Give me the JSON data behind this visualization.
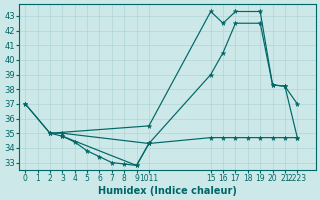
{
  "xlabel": "Humidex (Indice chaleur)",
  "bg_color": "#cce8e8",
  "line_color": "#006666",
  "grid_color": "#b0d4d4",
  "xlim": [
    -0.5,
    23.5
  ],
  "ylim": [
    32.5,
    43.8
  ],
  "yticks": [
    33,
    34,
    35,
    36,
    37,
    38,
    39,
    40,
    41,
    42,
    43
  ],
  "xtick_positions": [
    0,
    1,
    2,
    3,
    4,
    5,
    6,
    7,
    8,
    9,
    10,
    15,
    16,
    17,
    18,
    19,
    20,
    21,
    22
  ],
  "xtick_labels": [
    "0",
    "1",
    "2",
    "3",
    "4",
    "5",
    "6",
    "7",
    "8",
    "9",
    "1011",
    "15",
    "16",
    "17",
    "18",
    "19",
    "20",
    "21",
    "2223"
  ],
  "lines": [
    {
      "x": [
        0,
        2,
        10,
        15,
        16,
        17,
        19,
        20,
        21,
        22
      ],
      "y": [
        37.0,
        35.0,
        35.5,
        43.3,
        42.5,
        43.3,
        43.3,
        38.3,
        38.2,
        37.0
      ]
    },
    {
      "x": [
        0,
        2,
        3,
        4,
        5,
        6,
        7,
        8,
        9,
        10,
        15,
        16,
        17,
        18,
        19,
        20,
        21,
        22
      ],
      "y": [
        37.0,
        35.0,
        34.8,
        34.4,
        33.8,
        33.4,
        33.0,
        32.9,
        32.8,
        34.3,
        34.7,
        34.7,
        34.7,
        34.7,
        34.7,
        34.7,
        34.7,
        34.7
      ]
    },
    {
      "x": [
        2,
        3,
        10,
        15,
        16,
        17,
        19,
        20,
        21,
        22
      ],
      "y": [
        35.0,
        35.0,
        34.3,
        39.0,
        40.5,
        42.5,
        42.5,
        38.3,
        38.2,
        34.7
      ]
    },
    {
      "comment": "small triangle: 3,34.8 -> 9,32.8 -> 10,34.3",
      "x": [
        3,
        9,
        10
      ],
      "y": [
        34.8,
        32.8,
        34.3
      ]
    }
  ]
}
